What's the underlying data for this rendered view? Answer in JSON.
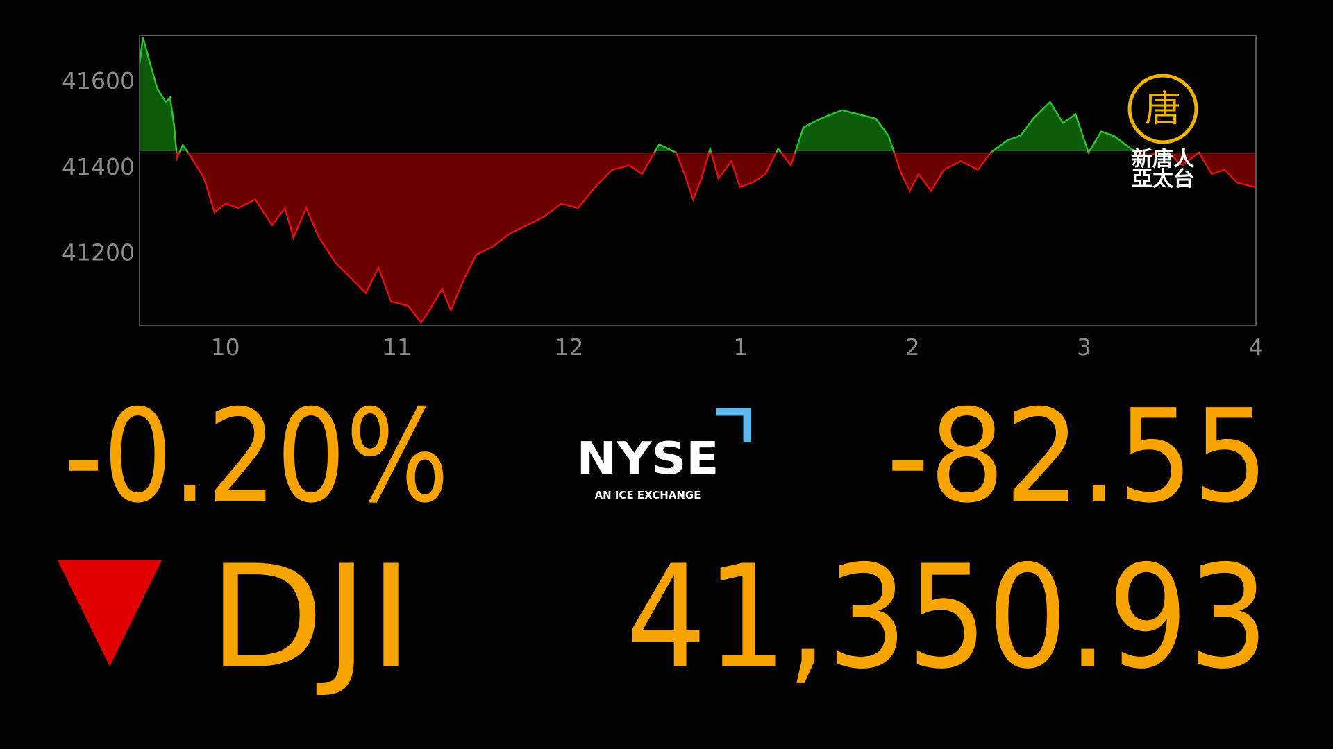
{
  "chart_data": {
    "type": "area",
    "x": [
      9.5,
      9.52,
      9.554,
      9.604,
      9.653,
      9.678,
      9.703,
      9.718,
      9.752,
      9.802,
      9.876,
      9.936,
      10.0,
      10.074,
      10.173,
      10.272,
      10.347,
      10.396,
      10.47,
      10.545,
      10.644,
      10.718,
      10.817,
      10.891,
      10.965,
      11.064,
      11.139,
      11.188,
      11.262,
      11.312,
      11.386,
      11.46,
      11.559,
      11.658,
      11.757,
      11.856,
      11.955,
      12.054,
      12.153,
      12.252,
      12.351,
      12.426,
      12.525,
      12.624,
      12.673,
      12.723,
      12.772,
      12.822,
      12.871,
      12.946,
      12.995,
      13.069,
      13.144,
      13.218,
      13.292,
      13.366,
      13.465,
      13.589,
      13.688,
      13.787,
      13.861,
      13.936,
      13.985,
      14.035,
      14.109,
      14.183,
      14.282,
      14.381,
      14.455,
      14.554,
      14.629,
      14.703,
      14.802,
      14.876,
      14.95,
      15.025,
      15.099,
      15.173,
      15.272,
      15.371,
      15.47,
      15.569,
      15.668,
      15.743,
      15.817,
      15.891,
      16.0
    ],
    "values": [
      41640,
      41700,
      41650,
      41580,
      41550,
      41560,
      41490,
      41420,
      41450,
      41420,
      41372,
      41293,
      41313,
      41303,
      41323,
      41263,
      41303,
      41234,
      41303,
      41234,
      41174,
      41145,
      41105,
      41164,
      41085,
      41075,
      41036,
      41065,
      41115,
      41065,
      41135,
      41194,
      41214,
      41244,
      41263,
      41283,
      41313,
      41303,
      41352,
      41392,
      41402,
      41382,
      41451,
      41432,
      41382,
      41323,
      41372,
      41441,
      41372,
      41412,
      41352,
      41362,
      41382,
      41441,
      41402,
      41491,
      41511,
      41531,
      41521,
      41511,
      41471,
      41382,
      41343,
      41382,
      41343,
      41392,
      41412,
      41392,
      41432,
      41461,
      41471,
      41511,
      41550,
      41501,
      41521,
      41432,
      41481,
      41471,
      41441,
      41422,
      41441,
      41402,
      41432,
      41382,
      41392,
      41362,
      41351
    ],
    "reference_value": 41433,
    "up_color": "#0c5c0c",
    "up_line_color": "#30c030",
    "down_color": "#6a0000",
    "down_line_color": "#e01010",
    "xlim": [
      9.5,
      16
    ],
    "ylim": [
      41030,
      41705
    ],
    "xticks": [
      10,
      11,
      {
        "value": 12,
        "label": "12"
      },
      {
        "value": 13,
        "label": "1"
      },
      {
        "value": 14,
        "label": "2"
      },
      {
        "value": 15,
        "label": "3"
      },
      {
        "value": 16,
        "label": "4"
      }
    ],
    "yticks": [
      41200,
      41400,
      41600
    ]
  },
  "quote": {
    "percent_change": "-0.20%",
    "point_change": "-82.55",
    "symbol": "DJI",
    "price": "41,350.93"
  },
  "exchange": {
    "name": "NYSE",
    "tagline": "AN ICE EXCHANGE"
  },
  "watermark": {
    "emblem": "唐",
    "line1": "新唐人",
    "line2": "亞太台"
  }
}
